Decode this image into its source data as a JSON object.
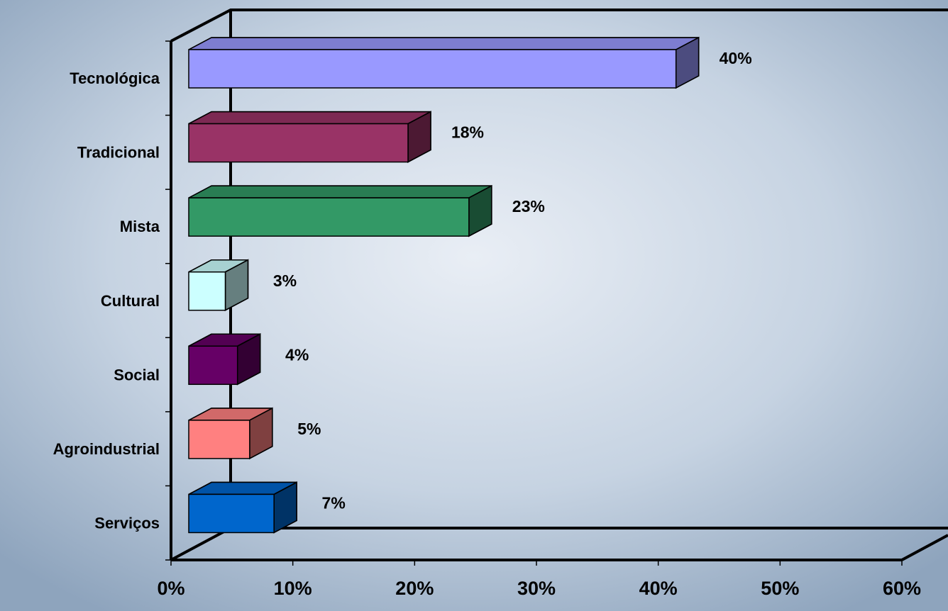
{
  "chart_data": {
    "type": "bar3d_horizontal",
    "categories": [
      "Tecnológica",
      "Tradicional",
      "Mista",
      "Cultural",
      "Social",
      "Agroindustrial",
      "Serviços"
    ],
    "values": [
      40,
      18,
      23,
      3,
      4,
      5,
      7
    ],
    "value_labels": [
      "40%",
      "18%",
      "23%",
      "3%",
      "4%",
      "5%",
      "7%"
    ],
    "colors": [
      "#9999ff",
      "#993366",
      "#339966",
      "#ccffff",
      "#660066",
      "#ff8080",
      "#0066cc"
    ],
    "xlim": [
      0,
      60
    ],
    "xticks": [
      {
        "value": 0,
        "label": "0%"
      },
      {
        "value": 10,
        "label": "10%"
      },
      {
        "value": 20,
        "label": "20%"
      },
      {
        "value": 30,
        "label": "30%"
      },
      {
        "value": 40,
        "label": "40%"
      },
      {
        "value": 50,
        "label": "50%"
      },
      {
        "value": 60,
        "label": "60%"
      }
    ],
    "grid": false
  }
}
